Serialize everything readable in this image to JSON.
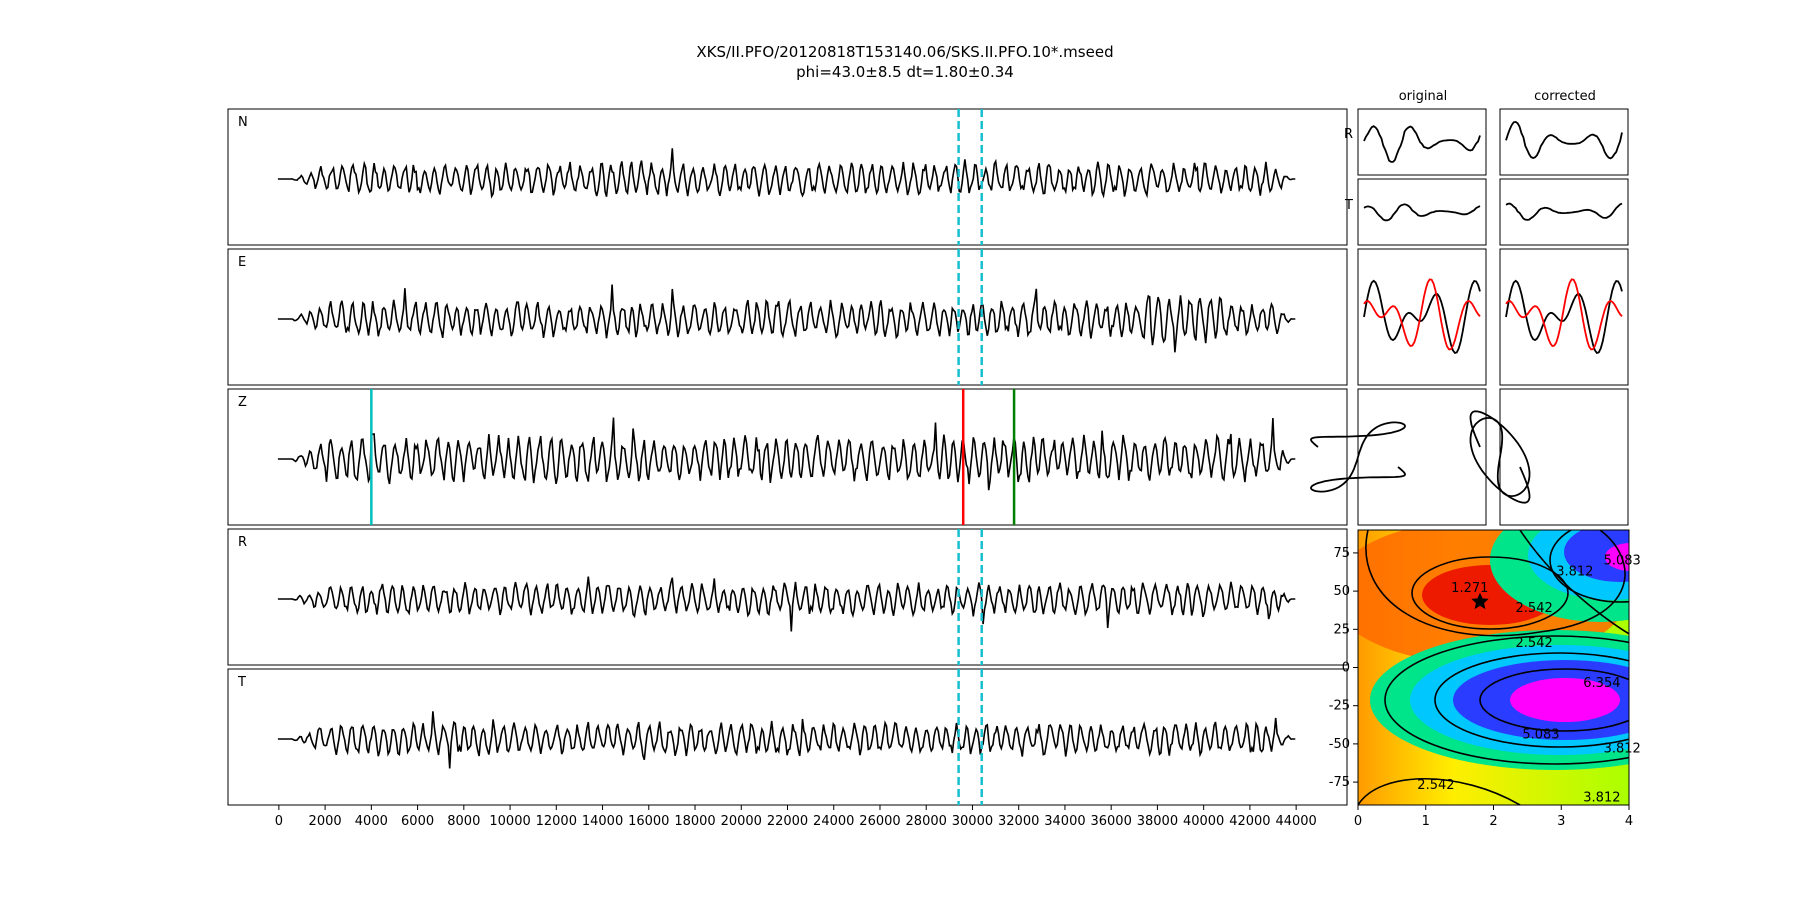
{
  "title": {
    "line1": "XKS/II.PFO/20120818T153140.06/SKS.II.PFO.10*.mseed",
    "line2": "phi=43.0±8.5 dt=1.80±0.34"
  },
  "chart_data": [
    {
      "type": "line",
      "id": "waveforms",
      "panels": [
        "N",
        "E",
        "Z",
        "R",
        "T"
      ],
      "x_ticks": [
        0,
        2000,
        4000,
        6000,
        8000,
        10000,
        12000,
        14000,
        16000,
        18000,
        20000,
        22000,
        24000,
        26000,
        28000,
        30000,
        32000,
        34000,
        36000,
        38000,
        40000,
        42000,
        44000
      ],
      "xlim": [
        -2200,
        46200
      ],
      "trace_range": [
        0,
        44000
      ],
      "window_lines": {
        "color": "#17becf",
        "x": [
          29400,
          30400
        ],
        "panels": [
          "N",
          "E",
          "R",
          "T"
        ]
      },
      "phase_markers": [
        {
          "panel": "Z",
          "x": 4000,
          "color": "#00bfbf"
        },
        {
          "panel": "Z",
          "x": 29600,
          "color": "#ff0000"
        },
        {
          "panel": "Z",
          "x": 31800,
          "color": "#008000"
        }
      ]
    },
    {
      "type": "line",
      "id": "particle-panels",
      "column_titles": [
        "original",
        "corrected"
      ],
      "row_labels": [
        "R",
        "T"
      ],
      "overlay_colors": [
        "#000000",
        "#ff0000"
      ]
    },
    {
      "type": "heatmap",
      "id": "error-surface",
      "x_ticks": [
        0,
        1,
        2,
        3,
        4
      ],
      "y_ticks": [
        75,
        50,
        25,
        0,
        -25,
        -50,
        -75
      ],
      "xlim": [
        0,
        4
      ],
      "ylim": [
        -90,
        90
      ],
      "best": {
        "dt": 1.8,
        "phi": 43.0
      },
      "contour_labels": [
        "1.271",
        "2.542",
        "3.812",
        "5.083",
        "6.354"
      ]
    }
  ]
}
